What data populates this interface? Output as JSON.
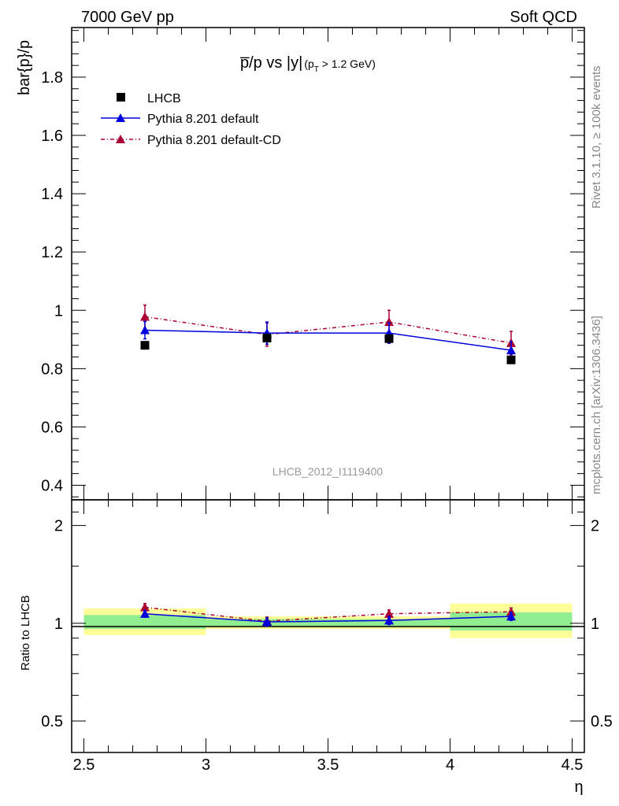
{
  "header": {
    "left": "7000 GeV pp",
    "right": "Soft QCD"
  },
  "side_labels": {
    "rivet": "Rivet 3.1.10, ≥ 100k events",
    "mcplots": "mcplots.cern.ch [arXiv:1306.3436]"
  },
  "main_plot": {
    "title_main": "p̅/p vs |y|",
    "title_sub": "(p",
    "title_sub_index": "T",
    "title_sub_tail": " > 1.2 GeV)",
    "ylabel": "bar{p}/p",
    "analysis_id": "LHCB_2012_I1119400",
    "y_ticks": [
      "0.4",
      "0.6",
      "0.8",
      "1",
      "1.2",
      "1.4",
      "1.6",
      "1.8"
    ]
  },
  "ratio_plot": {
    "ylabel": "Ratio to LHCB",
    "y_ticks": [
      "0.5",
      "1",
      "2"
    ]
  },
  "x_axis": {
    "label": "η",
    "ticks": [
      "2.5",
      "3",
      "3.5",
      "4",
      "4.5"
    ]
  },
  "colors": {
    "data": "#000000",
    "default": "#0000dd",
    "default_cd": "#aa0033",
    "band_inner": "#90ee90",
    "band_outer": "#ffff99"
  },
  "chart_data": [
    {
      "type": "scatter",
      "panel": "main",
      "xlabel": "η",
      "ylabel": "bar{p}/p",
      "xlim": [
        2.45,
        4.55
      ],
      "ylim": [
        0.35,
        1.97
      ],
      "x": [
        2.75,
        3.25,
        3.75,
        4.25
      ],
      "series": [
        {
          "name": "LHCB",
          "values": [
            0.88,
            0.905,
            0.903,
            0.83
          ]
        },
        {
          "name": "Pythia 8.201 default",
          "values": [
            0.932,
            0.922,
            0.922,
            0.863
          ],
          "errors": [
            0.03,
            0.038,
            0.035,
            0.03
          ]
        },
        {
          "name": "Pythia 8.201 default-CD",
          "values": [
            0.978,
            0.917,
            0.96,
            0.888
          ],
          "errors": [
            0.04,
            0.04,
            0.04,
            0.04
          ]
        }
      ],
      "legend": "top-left"
    },
    {
      "type": "scatter",
      "panel": "ratio",
      "xlabel": "η",
      "ylabel": "Ratio to LHCB",
      "scale": "log",
      "xlim": [
        2.45,
        4.55
      ],
      "ylim": [
        0.4,
        2.4
      ],
      "x": [
        2.75,
        3.25,
        3.75,
        4.25
      ],
      "bin_edges": [
        2.5,
        3.0,
        3.5,
        4.0,
        4.5
      ],
      "band_inner": [
        [
          0.96,
          1.06
        ],
        [
          0.98,
          1.03
        ],
        [
          0.98,
          1.03
        ],
        [
          0.95,
          1.08
        ]
      ],
      "band_outer": [
        [
          0.92,
          1.11
        ],
        [
          0.96,
          1.05
        ],
        [
          0.96,
          1.05
        ],
        [
          0.9,
          1.15
        ]
      ],
      "series": [
        {
          "name": "Pythia 8.201 default",
          "values": [
            1.07,
            1.01,
            1.02,
            1.05
          ],
          "errors": [
            0.025,
            0.03,
            0.03,
            0.03
          ]
        },
        {
          "name": "Pythia 8.201 default-CD",
          "values": [
            1.12,
            1.015,
            1.07,
            1.085
          ],
          "errors": [
            0.03,
            0.03,
            0.03,
            0.03
          ]
        }
      ]
    }
  ]
}
